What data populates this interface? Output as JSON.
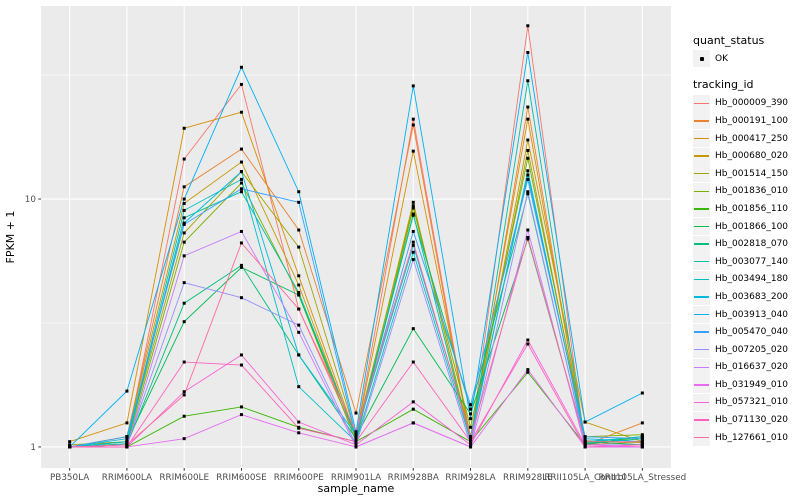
{
  "chart_data": {
    "type": "line",
    "title": "",
    "xlabel": "sample_name",
    "ylabel": "FPKM + 1",
    "y_scale": "log10",
    "y_ticks": [
      1,
      10
    ],
    "y_minor": [
      3.162,
      31.623
    ],
    "ylim": [
      0.82,
      60
    ],
    "grid": true,
    "legend_position": "right",
    "panel_bg": "#EBEBEB",
    "grid_color": "#FFFFFF",
    "point_color": "#000000",
    "categories": [
      "PB350LA",
      "RRIM600LA",
      "RRIM600LE",
      "RRIM600SE",
      "RRIM600PE",
      "RRIM901LA",
      "RRIM928BA",
      "RRIM928LA",
      "RRIM928LE",
      "RRII105LA_Control",
      "RRII105LA_Stressed"
    ],
    "series": [
      {
        "name": "Hb_000009_390",
        "color": "#F8766D",
        "values": [
          1.0,
          1.05,
          14.5,
          29.0,
          3.6,
          1.1,
          21.0,
          1.05,
          50.0,
          1.02,
          1.05
        ]
      },
      {
        "name": "Hb_000191_100",
        "color": "#EA8331",
        "values": [
          1.0,
          1.1,
          11.2,
          15.9,
          7.5,
          1.37,
          19.9,
          1.02,
          23.5,
          1.02,
          1.25
        ]
      },
      {
        "name": "Hb_000417_250",
        "color": "#D89000",
        "values": [
          1.05,
          1.25,
          19.3,
          22.4,
          4.9,
          1.1,
          15.6,
          1.1,
          21.0,
          1.05,
          1.02
        ]
      },
      {
        "name": "Hb_000680_020",
        "color": "#C49A00",
        "values": [
          1.0,
          1.1,
          9.6,
          14.1,
          4.5,
          1.08,
          9.7,
          1.05,
          17.3,
          1.26,
          1.05
        ]
      },
      {
        "name": "Hb_001514_150",
        "color": "#A3A500",
        "values": [
          1.02,
          1.05,
          7.3,
          12.9,
          6.4,
          1.12,
          9.4,
          1.08,
          15.7,
          1.06,
          1.04
        ]
      },
      {
        "name": "Hb_001836_010",
        "color": "#7CAE00",
        "values": [
          1.0,
          1.02,
          6.7,
          11.6,
          4.1,
          1.05,
          9.2,
          1.2,
          14.6,
          1.1,
          1.12
        ]
      },
      {
        "name": "Hb_001856_110",
        "color": "#39B600",
        "values": [
          1.0,
          1.0,
          1.33,
          1.45,
          1.2,
          1.05,
          1.42,
          1.05,
          2.0,
          1.02,
          1.1
        ]
      },
      {
        "name": "Hb_001866_100",
        "color": "#00BB4E",
        "values": [
          1.0,
          1.05,
          3.2,
          5.3,
          4.1,
          1.1,
          3.0,
          1.36,
          6.9,
          1.05,
          1.02
        ]
      },
      {
        "name": "Hb_002818_070",
        "color": "#00BF7D",
        "values": [
          1.0,
          1.02,
          3.8,
          5.4,
          2.35,
          1.08,
          8.6,
          1.42,
          10.5,
          1.03,
          1.08
        ]
      },
      {
        "name": "Hb_003077_140",
        "color": "#00C1A3",
        "values": [
          1.0,
          1.03,
          8.4,
          10.7,
          4.2,
          1.1,
          8.7,
          1.04,
          30.0,
          1.04,
          1.1
        ]
      },
      {
        "name": "Hb_003494_180",
        "color": "#00BFC4",
        "values": [
          1.0,
          1.05,
          9.0,
          12.0,
          1.75,
          1.05,
          6.1,
          1.06,
          13.0,
          1.05,
          1.1
        ]
      },
      {
        "name": "Hb_003683_200",
        "color": "#00BAE0",
        "values": [
          1.0,
          1.08,
          8.0,
          12.9,
          2.35,
          1.12,
          6.5,
          1.1,
          12.5,
          1.08,
          1.05
        ]
      },
      {
        "name": "Hb_003913_040",
        "color": "#00B0F6",
        "values": [
          1.0,
          1.68,
          10.0,
          34.0,
          10.7,
          1.15,
          28.6,
          1.3,
          39.0,
          1.26,
          1.65
        ]
      },
      {
        "name": "Hb_005470_040",
        "color": "#35A2FF",
        "values": [
          1.0,
          1.1,
          7.9,
          11.0,
          9.7,
          1.1,
          7.4,
          1.48,
          12.0,
          1.1,
          1.08
        ]
      },
      {
        "name": "Hb_007205_020",
        "color": "#9590FF",
        "values": [
          1.0,
          1.02,
          4.6,
          4.0,
          3.1,
          1.02,
          5.7,
          1.02,
          10.7,
          1.02,
          1.02
        ]
      },
      {
        "name": "Hb_016637_020",
        "color": "#C77CFF",
        "values": [
          1.0,
          1.0,
          5.9,
          7.4,
          2.9,
          1.0,
          1.25,
          1.0,
          7.5,
          1.0,
          1.0
        ]
      },
      {
        "name": "Hb_031949_010",
        "color": "#E76BF3",
        "values": [
          1.0,
          1.0,
          1.08,
          1.35,
          1.14,
          1.0,
          1.25,
          1.0,
          2.05,
          1.0,
          1.0
        ]
      },
      {
        "name": "Hb_057321_010",
        "color": "#FA62DB",
        "values": [
          1.0,
          1.0,
          1.67,
          2.35,
          1.26,
          1.02,
          1.52,
          1.02,
          2.7,
          1.02,
          1.0
        ]
      },
      {
        "name": "Hb_071130_020",
        "color": "#FF62BC",
        "values": [
          1.0,
          1.0,
          2.2,
          2.14,
          1.19,
          1.05,
          2.2,
          1.05,
          2.6,
          1.0,
          1.02
        ]
      },
      {
        "name": "Hb_127661_010",
        "color": "#FF6A98",
        "values": [
          1.0,
          1.02,
          1.62,
          6.65,
          3.6,
          1.15,
          6.7,
          1.09,
          7.0,
          1.05,
          1.05
        ]
      }
    ]
  },
  "legend": {
    "quant_status_title": "quant_status",
    "quant_status_items": [
      {
        "label": "OK"
      }
    ],
    "tracking_title": "tracking_id"
  }
}
